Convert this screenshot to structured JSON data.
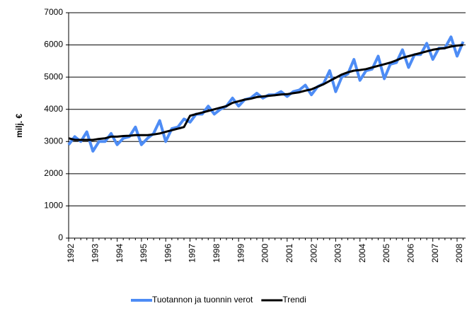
{
  "chart_data": {
    "type": "line",
    "y_label": "milj. €",
    "categories": [
      "1992",
      null,
      null,
      null,
      "1993",
      null,
      null,
      null,
      "1994",
      null,
      null,
      null,
      "1995",
      null,
      null,
      null,
      "1996",
      null,
      null,
      null,
      "1997",
      null,
      null,
      null,
      "1998",
      null,
      null,
      null,
      "1999",
      null,
      null,
      null,
      "2000",
      null,
      null,
      null,
      "2001",
      null,
      null,
      null,
      "2002",
      null,
      null,
      null,
      "2003",
      null,
      null,
      null,
      "2004",
      null,
      null,
      null,
      "2005",
      null,
      null,
      null,
      "2006",
      null,
      null,
      null,
      "2007",
      null,
      null,
      null,
      "2008",
      null
    ],
    "series": [
      {
        "name": "Tuotannon ja tuonnin verot",
        "color": "#4d8cf5",
        "width": 4,
        "values": [
          2900,
          3150,
          3000,
          3300,
          2700,
          3000,
          3000,
          3250,
          2900,
          3100,
          3150,
          3450,
          2900,
          3100,
          3250,
          3650,
          3000,
          3400,
          3450,
          3700,
          3600,
          3850,
          3850,
          4100,
          3850,
          4000,
          4100,
          4350,
          4100,
          4300,
          4350,
          4500,
          4350,
          4450,
          4450,
          4550,
          4400,
          4550,
          4600,
          4750,
          4450,
          4700,
          4800,
          5200,
          4550,
          5000,
          5100,
          5550,
          4900,
          5200,
          5250,
          5650,
          4950,
          5400,
          5450,
          5850,
          5300,
          5700,
          5700,
          6050,
          5550,
          5900,
          5900,
          6250,
          5650,
          6100
        ]
      },
      {
        "name": "Trendi",
        "color": "#000000",
        "width": 3,
        "values": [
          3100,
          3050,
          3050,
          3050,
          3050,
          3080,
          3100,
          3150,
          3150,
          3170,
          3180,
          3200,
          3200,
          3200,
          3220,
          3250,
          3300,
          3350,
          3400,
          3450,
          3800,
          3850,
          3900,
          3950,
          4000,
          4050,
          4100,
          4200,
          4250,
          4300,
          4330,
          4380,
          4400,
          4420,
          4440,
          4460,
          4470,
          4500,
          4530,
          4580,
          4620,
          4700,
          4780,
          4880,
          4980,
          5080,
          5150,
          5200,
          5220,
          5250,
          5300,
          5350,
          5400,
          5450,
          5520,
          5600,
          5650,
          5700,
          5750,
          5800,
          5850,
          5880,
          5900,
          5950,
          5980,
          6000
        ]
      }
    ],
    "ylim": [
      0,
      7000
    ],
    "yticks": [
      0,
      1000,
      2000,
      3000,
      4000,
      5000,
      6000,
      7000
    ],
    "grid": true
  }
}
